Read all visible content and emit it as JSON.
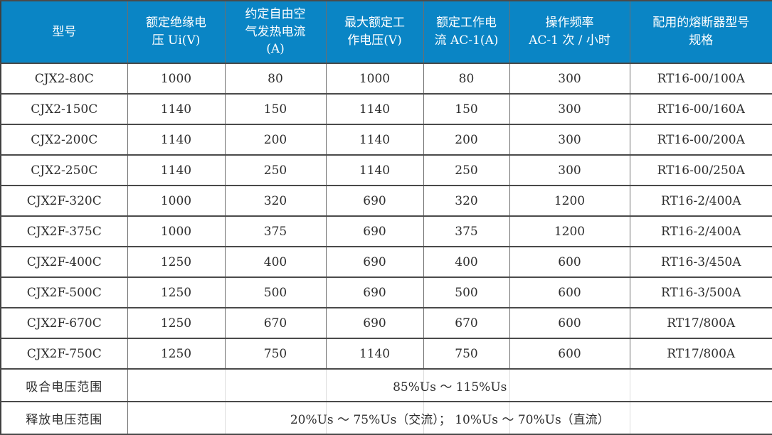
{
  "page": {
    "background_color": "#ffffff",
    "header_bg_color": "#0a85c5",
    "header_text_color": "#ffffff",
    "body_text_color": "#2d2d2d",
    "border_color": "#4a4a4a"
  },
  "table": {
    "columns": [
      {
        "label": "型号"
      },
      {
        "label": "额定绝缘电\n压 Ui(V)"
      },
      {
        "label": "约定自由空\n气发热电流\n(A)"
      },
      {
        "label": "最大额定工\n作电压(V)"
      },
      {
        "label": "额定工作电\n流 AC-1(A)"
      },
      {
        "label": "操作频率\nAC-1 次 / 小时"
      },
      {
        "label": "配用的熔断器型号\n规格"
      }
    ],
    "rows": [
      [
        "CJX2-80C",
        "1000",
        "80",
        "1000",
        "80",
        "300",
        "RT16-00/100A"
      ],
      [
        "CJX2-150C",
        "1140",
        "150",
        "1140",
        "150",
        "300",
        "RT16-00/160A"
      ],
      [
        "CJX2-200C",
        "1140",
        "200",
        "1140",
        "200",
        "300",
        "RT16-00/200A"
      ],
      [
        "CJX2-250C",
        "1140",
        "250",
        "1140",
        "250",
        "300",
        "RT16-00/250A"
      ],
      [
        "CJX2F-320C",
        "1000",
        "320",
        "690",
        "320",
        "1200",
        "RT16-2/400A"
      ],
      [
        "CJX2F-375C",
        "1000",
        "375",
        "690",
        "375",
        "1200",
        "RT16-2/400A"
      ],
      [
        "CJX2F-400C",
        "1250",
        "400",
        "690",
        "400",
        "600",
        "RT16-3/450A"
      ],
      [
        "CJX2F-500C",
        "1250",
        "500",
        "690",
        "500",
        "600",
        "RT16-3/500A"
      ],
      [
        "CJX2F-670C",
        "1250",
        "670",
        "690",
        "670",
        "600",
        "RT17/800A"
      ],
      [
        "CJX2F-750C",
        "1250",
        "750",
        "1140",
        "750",
        "600",
        "RT17/800A"
      ]
    ],
    "footer_rows": [
      {
        "label": "吸合电压范围",
        "value": "85%Us ～ 115%Us"
      },
      {
        "label": "释放电压范围",
        "value": "20%Us ～ 75%Us（交流）； 10%Us ～ 70%Us（直流）"
      }
    ]
  }
}
